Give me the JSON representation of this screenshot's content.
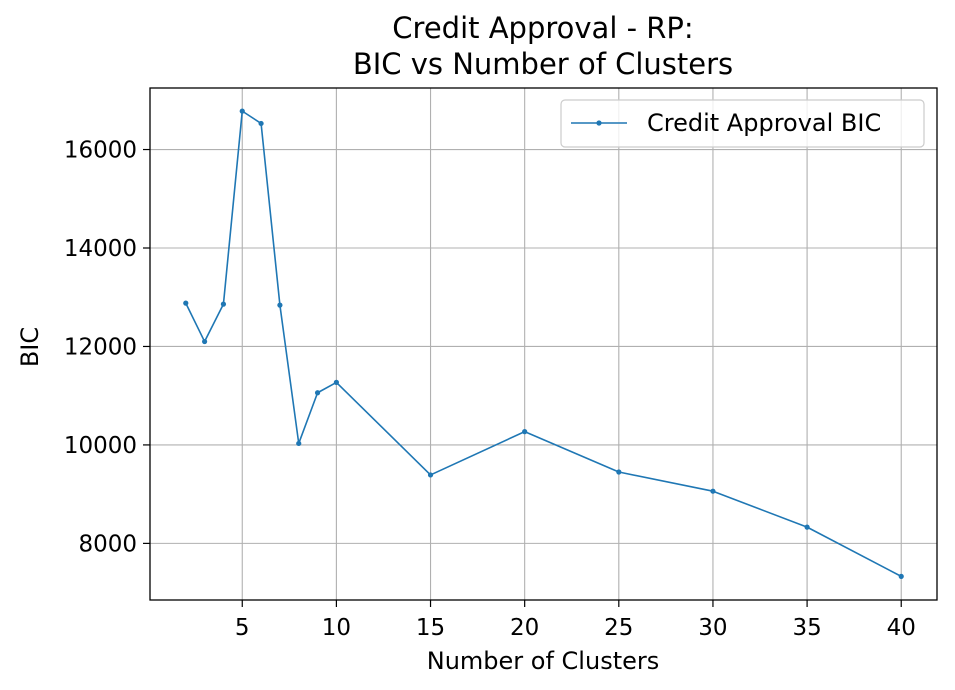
{
  "chart_data": {
    "type": "line",
    "title_line1": "Credit Approval - RP:",
    "title_line2": "BIC vs Number of Clusters",
    "xlabel": "Number of Clusters",
    "ylabel": "BIC",
    "xlim": [
      0.1,
      41.9
    ],
    "ylim": [
      6850,
      17250
    ],
    "xticks": [
      5,
      10,
      15,
      20,
      25,
      30,
      35,
      40
    ],
    "yticks": [
      8000,
      10000,
      12000,
      14000,
      16000
    ],
    "grid": true,
    "legend_position": "top-right",
    "series": [
      {
        "name": "Credit Approval BIC",
        "color": "#1f77b4",
        "x": [
          2,
          3,
          4,
          5,
          6,
          7,
          8,
          9,
          10,
          15,
          20,
          25,
          30,
          35,
          40
        ],
        "y": [
          12880,
          12100,
          12860,
          16780,
          16530,
          12840,
          10030,
          11060,
          11270,
          9390,
          10270,
          9450,
          9060,
          8330,
          7330
        ]
      }
    ]
  }
}
